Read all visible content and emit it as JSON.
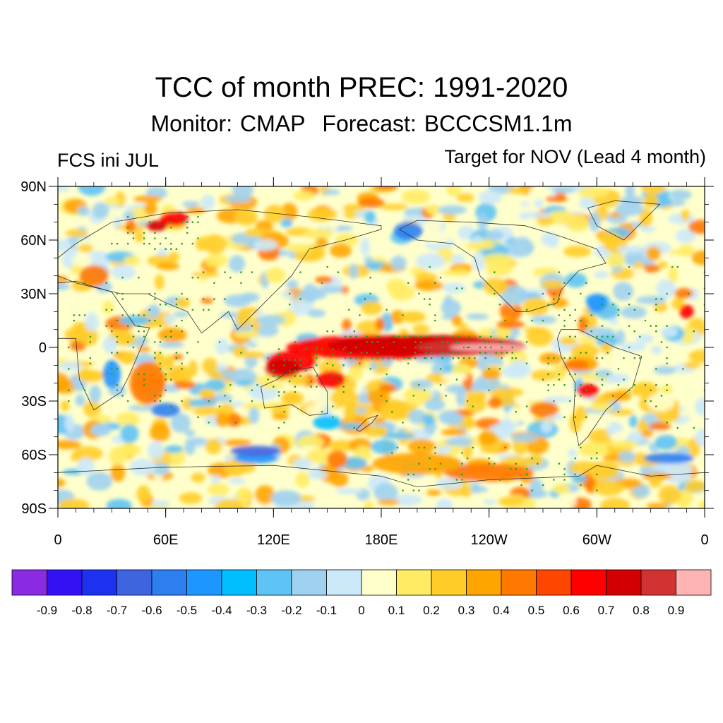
{
  "title": "TCC of month PREC: 1991-2020",
  "subtitle": {
    "monitor": "Monitor: CMAP",
    "forecast": "Forecast: BCCCSM1.1m"
  },
  "left_label": "FCS ini JUL",
  "right_label": "Target for NOV (Lead 4 month)",
  "map": {
    "y_ticks": [
      {
        "lat": 90,
        "label": "90N"
      },
      {
        "lat": 60,
        "label": "60N"
      },
      {
        "lat": 30,
        "label": "30N"
      },
      {
        "lat": 0,
        "label": "0"
      },
      {
        "lat": -30,
        "label": "30S"
      },
      {
        "lat": -60,
        "label": "60S"
      },
      {
        "lat": -90,
        "label": "90S"
      }
    ],
    "x_ticks": [
      {
        "lon": 0,
        "label": "0"
      },
      {
        "lon": 60,
        "label": "60E"
      },
      {
        "lon": 120,
        "label": "120E"
      },
      {
        "lon": 180,
        "label": "180E"
      },
      {
        "lon": 240,
        "label": "120W"
      },
      {
        "lon": 300,
        "label": "60W"
      },
      {
        "lon": 360,
        "label": "0"
      }
    ],
    "lon_range": [
      0,
      360
    ],
    "lat_range": [
      -90,
      90
    ],
    "significance_dot_color": "#2e9e2e",
    "coastline_color": "#333333"
  },
  "colorbar": {
    "colors": [
      "#8a2be2",
      "#3212f5",
      "#1c32f0",
      "#3e64e0",
      "#2d7ff0",
      "#1e96ff",
      "#00bfff",
      "#5ec3f5",
      "#a0d2f0",
      "#cce9fa",
      "#ffffcc",
      "#ffec64",
      "#ffcd28",
      "#ffa500",
      "#ff7800",
      "#ff4600",
      "#ff0000",
      "#d20000",
      "#d23232",
      "#ffb4b4"
    ],
    "labels": [
      "-0.9",
      "-0.8",
      "-0.7",
      "-0.6",
      "-0.5",
      "-0.4",
      "-0.3",
      "-0.2",
      "-0.1",
      "0",
      "0.1",
      "0.2",
      "0.3",
      "0.4",
      "0.5",
      "0.6",
      "0.7",
      "0.8",
      "0.9"
    ]
  }
}
